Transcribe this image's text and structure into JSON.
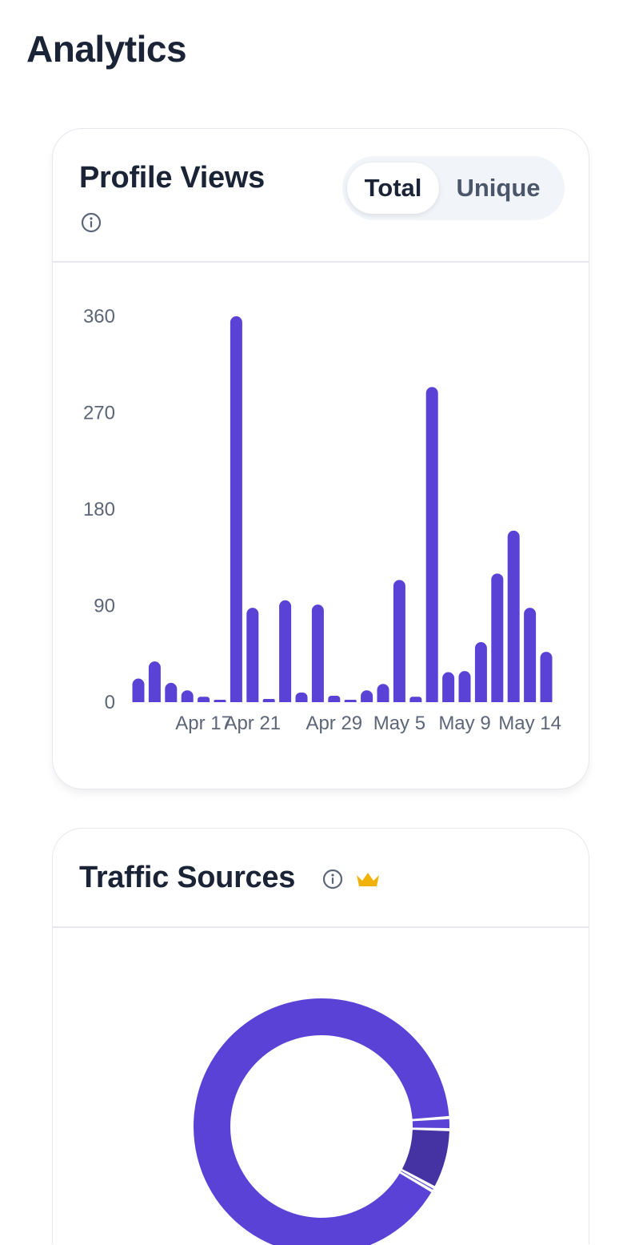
{
  "page": {
    "title": "Analytics"
  },
  "profile_views": {
    "title": "Profile Views",
    "toggle": {
      "options": [
        "Total",
        "Unique"
      ],
      "selected": "Total"
    }
  },
  "traffic_sources": {
    "title": "Traffic Sources",
    "premium": true
  },
  "colors": {
    "accent": "#5b42d6",
    "accent_dark": "#4532a3",
    "text": "#1b2336",
    "muted": "#5d6678",
    "premium": "#f2b20c"
  },
  "chart_data": [
    {
      "type": "bar",
      "ylim": [
        0,
        360
      ],
      "yticks": [
        0,
        90,
        180,
        270,
        360
      ],
      "x_tick_labels": [
        {
          "label": "Apr 17",
          "index": 4
        },
        {
          "label": "Apr 21",
          "index": 7
        },
        {
          "label": "Apr 29",
          "index": 12
        },
        {
          "label": "May 5",
          "index": 16
        },
        {
          "label": "May 9",
          "index": 20
        },
        {
          "label": "May 14",
          "index": 24
        }
      ],
      "values": [
        22,
        38,
        18,
        11,
        5,
        2,
        360,
        88,
        3,
        95,
        9,
        91,
        6,
        2,
        11,
        17,
        114,
        5,
        294,
        28,
        29,
        56,
        120,
        160,
        88,
        47
      ],
      "grid": false,
      "legend": "none"
    },
    {
      "type": "pie",
      "donut": true,
      "slices": [
        {
          "value": 90.5,
          "color": "#5b42d6"
        },
        {
          "value": 0.5,
          "color": "#5b42d6"
        },
        {
          "value": 7.5,
          "color": "#4532a3"
        },
        {
          "value": 1.5,
          "color": "#5b42d6"
        }
      ]
    }
  ]
}
